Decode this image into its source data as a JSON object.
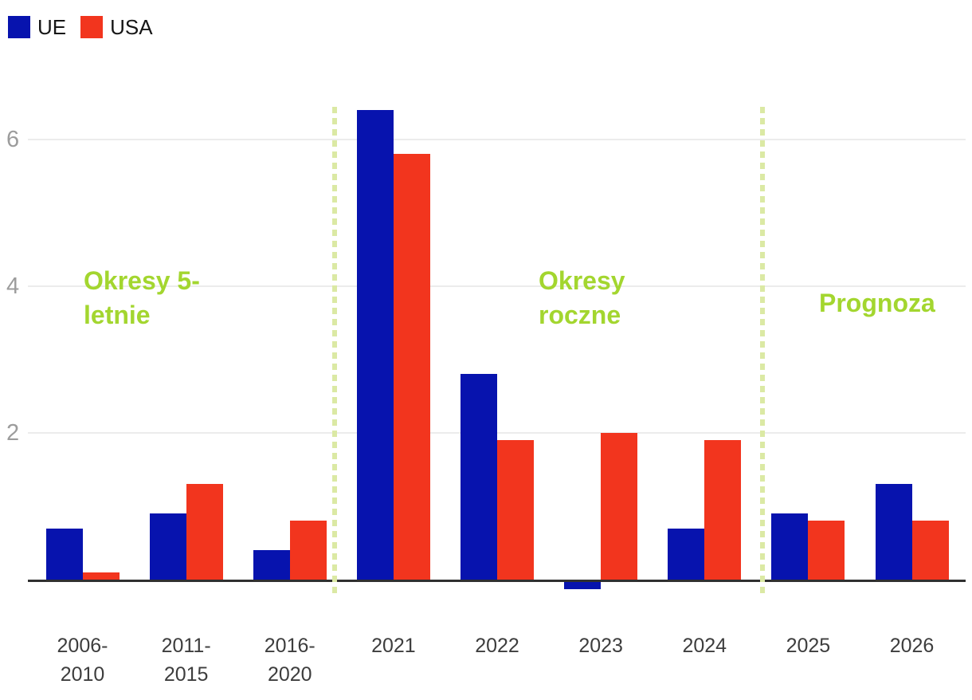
{
  "legend": {
    "items": [
      {
        "label": "UE",
        "color": "#0713ae"
      },
      {
        "label": "USA",
        "color": "#f2351e"
      }
    ]
  },
  "sections": [
    {
      "label": "Okresy 5-letnie",
      "line1": "Okresy 5-",
      "line2": "letnie",
      "categories": [
        "2006-2010",
        "2011-2015",
        "2016-2020"
      ]
    },
    {
      "label": "Okresy roczne",
      "line1": "Okresy",
      "line2": "roczne",
      "categories": [
        "2021",
        "2022",
        "2023",
        "2024"
      ]
    },
    {
      "label": "Prognoza",
      "line1": "Prognoza",
      "line2": "",
      "categories": [
        "2025",
        "2026"
      ]
    }
  ],
  "chart_data": {
    "type": "bar",
    "title": "",
    "xlabel": "",
    "ylabel": "",
    "categories": [
      "2006-2010",
      "2011-2015",
      "2016-2020",
      "2021",
      "2022",
      "2023",
      "2024",
      "2025",
      "2026"
    ],
    "category_tick_lines": [
      [
        "2006-",
        "2010"
      ],
      [
        "2011-",
        "2015"
      ],
      [
        "2016-",
        "2020"
      ],
      [
        "2021"
      ],
      [
        "2022"
      ],
      [
        "2023"
      ],
      [
        "2024"
      ],
      [
        "2025"
      ],
      [
        "2026"
      ]
    ],
    "series": [
      {
        "name": "UE",
        "color": "#0713ae",
        "values": [
          0.7,
          0.9,
          0.4,
          6.4,
          2.8,
          -0.1,
          0.7,
          0.9,
          1.3
        ]
      },
      {
        "name": "USA",
        "color": "#f2351e",
        "values": [
          0.1,
          1.3,
          0.8,
          5.8,
          1.9,
          2.0,
          1.9,
          0.8,
          0.8
        ]
      }
    ],
    "y_ticks": [
      2,
      4,
      6
    ],
    "ylim": [
      -0.4,
      6.5
    ],
    "grid": "horizontal-only",
    "legend_position": "top-left",
    "annotations": [
      "Okresy 5-letnie",
      "Okresy roczne",
      "Prognoza"
    ],
    "colors": {
      "annotation_text": "#a3d62f",
      "divider_dash": "#dbe9a4",
      "axis_line": "#303030",
      "gridline": "#ececec",
      "y_tick_label": "#9c9c9c",
      "x_tick_label": "#3d3d3d",
      "legend_text": "#161616"
    }
  }
}
